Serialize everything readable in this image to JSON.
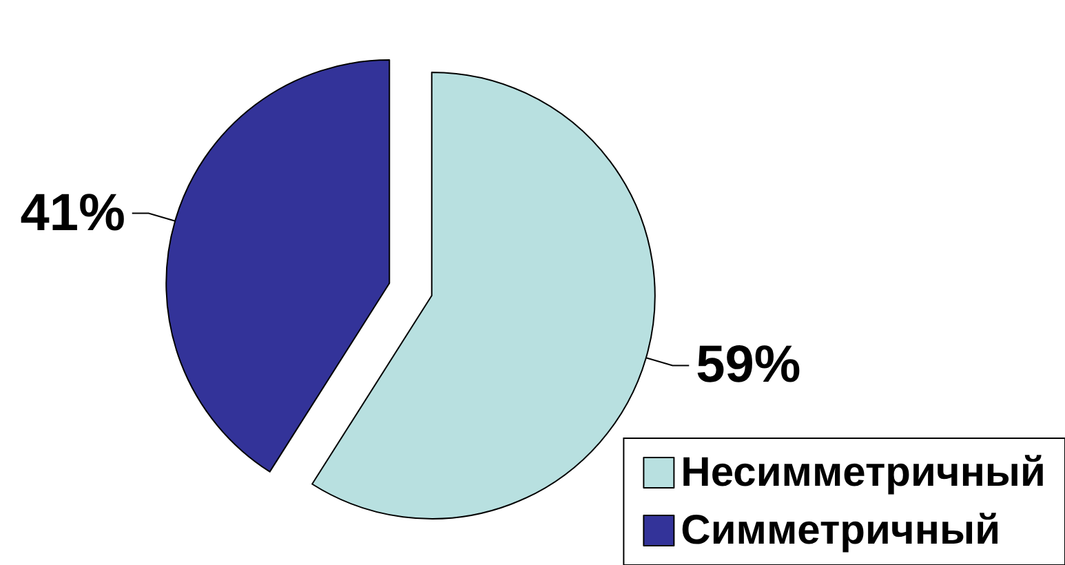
{
  "chart_data": {
    "type": "pie",
    "categories": [
      "Несимметричный",
      "Симметричный"
    ],
    "values": [
      59,
      41
    ],
    "colors": [
      "#b8e0e0",
      "#333399"
    ],
    "value_labels": [
      "59%",
      "41%"
    ],
    "legend": "bottom right"
  }
}
